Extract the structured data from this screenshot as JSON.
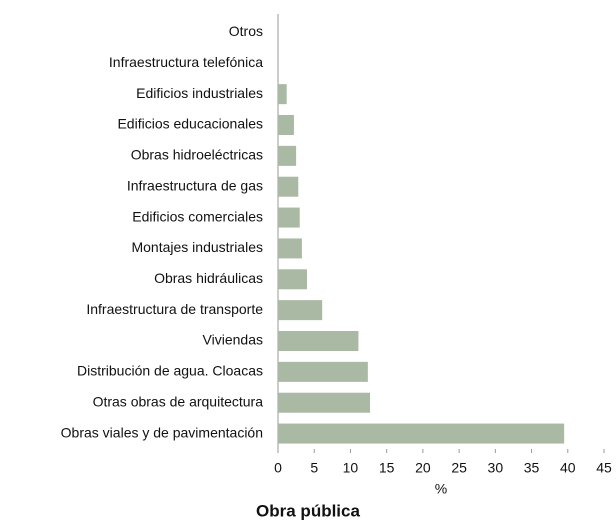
{
  "chart_data": {
    "type": "bar",
    "orientation": "horizontal",
    "title": "Obra pública",
    "x_label": "%",
    "categories": [
      "Otros",
      "Infraestructura telefónica",
      "Edificios industriales",
      "Edificios educacionales",
      "Obras hidroeléctricas",
      "Infraestructura de gas",
      "Edificios comerciales",
      "Montajes industriales",
      "Obras hidráulicas",
      "Infraestructura de transporte",
      "Viviendas",
      "Distribución de agua. Cloacas",
      "Otras obras de arquitectura",
      "Obras viales y de pavimentación"
    ],
    "values": [
      0,
      0,
      1.2,
      2.2,
      2.5,
      2.8,
      3.0,
      3.3,
      4.0,
      6.1,
      11.1,
      12.4,
      12.7,
      39.5
    ],
    "color": "#a9b9a4",
    "xlim": [
      0,
      45
    ],
    "xticks": [
      0,
      5,
      10,
      15,
      20,
      25,
      30,
      35,
      40,
      45
    ]
  }
}
